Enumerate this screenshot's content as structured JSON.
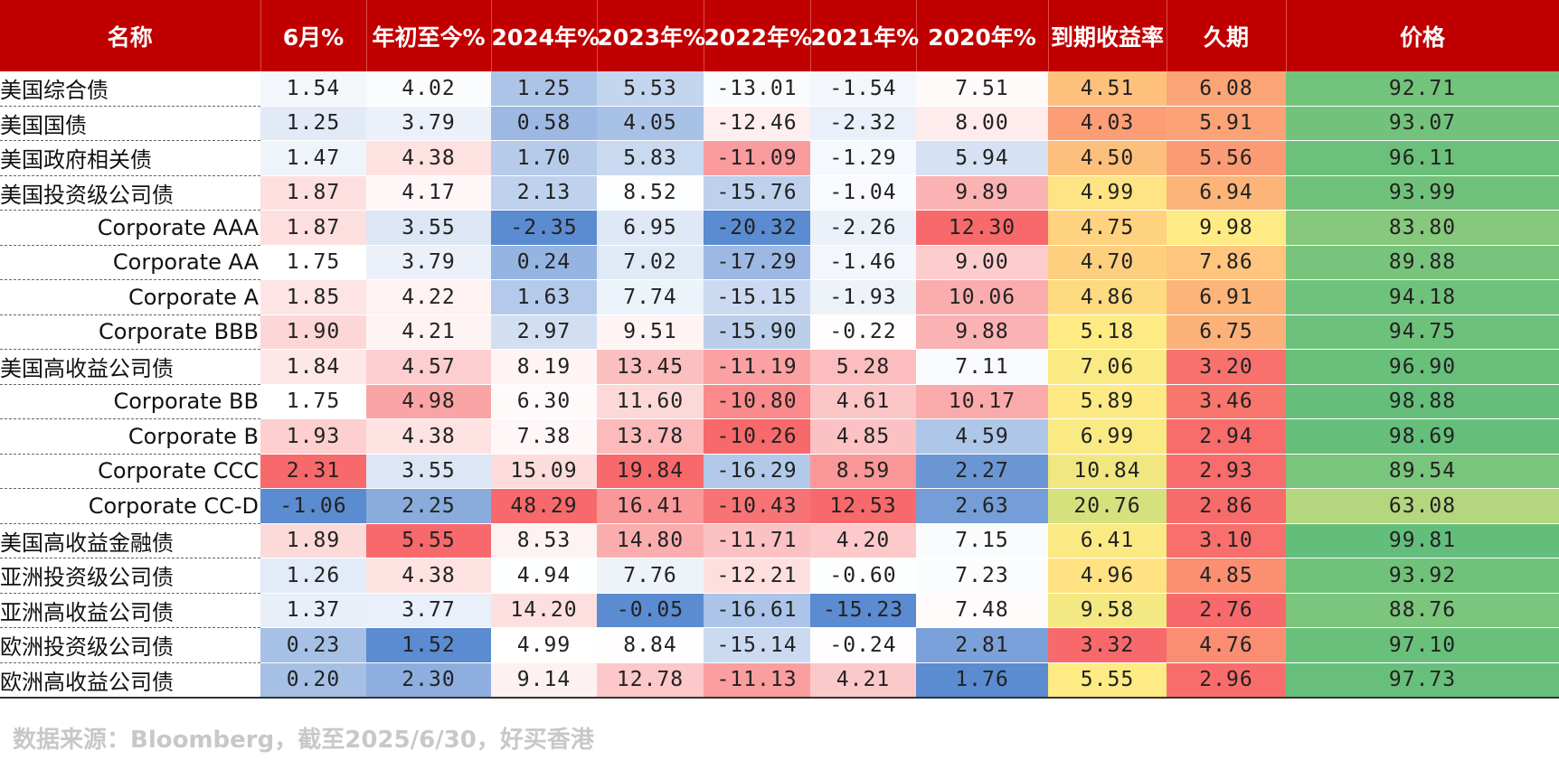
{
  "headers": [
    "名称",
    "6月%",
    "年初至今%",
    "2024年%",
    "2023年%",
    "2022年%",
    "2021年%",
    "2020年%",
    "到期收益率",
    "久期",
    "价格"
  ],
  "rows": [
    {
      "name": "美国综合债",
      "indent": false,
      "values": [
        "1.54",
        "4.02",
        "1.25",
        "5.53",
        "-13.01",
        "-1.54",
        "7.51",
        "4.51",
        "6.08",
        "92.71"
      ]
    },
    {
      "name": "美国国债",
      "indent": false,
      "values": [
        "1.25",
        "3.79",
        "0.58",
        "4.05",
        "-12.46",
        "-2.32",
        "8.00",
        "4.03",
        "5.91",
        "93.07"
      ]
    },
    {
      "name": "美国政府相关债",
      "indent": false,
      "values": [
        "1.47",
        "4.38",
        "1.70",
        "5.83",
        "-11.09",
        "-1.29",
        "5.94",
        "4.50",
        "5.56",
        "96.11"
      ]
    },
    {
      "name": "美国投资级公司债",
      "indent": false,
      "values": [
        "1.87",
        "4.17",
        "2.13",
        "8.52",
        "-15.76",
        "-1.04",
        "9.89",
        "4.99",
        "6.94",
        "93.99"
      ]
    },
    {
      "name": "Corporate AAA",
      "indent": true,
      "values": [
        "1.87",
        "3.55",
        "-2.35",
        "6.95",
        "-20.32",
        "-2.26",
        "12.30",
        "4.75",
        "9.98",
        "83.80"
      ]
    },
    {
      "name": "Corporate AA",
      "indent": true,
      "values": [
        "1.75",
        "3.79",
        "0.24",
        "7.02",
        "-17.29",
        "-1.46",
        "9.00",
        "4.70",
        "7.86",
        "89.88"
      ]
    },
    {
      "name": "Corporate A",
      "indent": true,
      "values": [
        "1.85",
        "4.22",
        "1.63",
        "7.74",
        "-15.15",
        "-1.93",
        "10.06",
        "4.86",
        "6.91",
        "94.18"
      ]
    },
    {
      "name": "Corporate BBB",
      "indent": true,
      "values": [
        "1.90",
        "4.21",
        "2.97",
        "9.51",
        "-15.90",
        "-0.22",
        "9.88",
        "5.18",
        "6.75",
        "94.75"
      ]
    },
    {
      "name": "美国高收益公司债",
      "indent": false,
      "values": [
        "1.84",
        "4.57",
        "8.19",
        "13.45",
        "-11.19",
        "5.28",
        "7.11",
        "7.06",
        "3.20",
        "96.90"
      ]
    },
    {
      "name": "Corporate BB",
      "indent": true,
      "values": [
        "1.75",
        "4.98",
        "6.30",
        "11.60",
        "-10.80",
        "4.61",
        "10.17",
        "5.89",
        "3.46",
        "98.88"
      ]
    },
    {
      "name": "Corporate B",
      "indent": true,
      "values": [
        "1.93",
        "4.38",
        "7.38",
        "13.78",
        "-10.26",
        "4.85",
        "4.59",
        "6.99",
        "2.94",
        "98.69"
      ]
    },
    {
      "name": "Corporate CCC",
      "indent": true,
      "values": [
        "2.31",
        "3.55",
        "15.09",
        "19.84",
        "-16.29",
        "8.59",
        "2.27",
        "10.84",
        "2.93",
        "89.54"
      ]
    },
    {
      "name": "Corporate CC-D",
      "indent": true,
      "values": [
        "-1.06",
        "2.25",
        "48.29",
        "16.41",
        "-10.43",
        "12.53",
        "2.63",
        "20.76",
        "2.86",
        "63.08"
      ]
    },
    {
      "name": "美国高收益金融债",
      "indent": false,
      "values": [
        "1.89",
        "5.55",
        "8.53",
        "14.80",
        "-11.71",
        "4.20",
        "7.15",
        "6.41",
        "3.10",
        "99.81"
      ]
    },
    {
      "name": "亚洲投资级公司债",
      "indent": false,
      "values": [
        "1.26",
        "4.38",
        "4.94",
        "7.76",
        "-12.21",
        "-0.60",
        "7.23",
        "4.96",
        "4.85",
        "93.92"
      ]
    },
    {
      "name": "亚洲高收益公司债",
      "indent": false,
      "values": [
        "1.37",
        "3.77",
        "14.20",
        "-0.05",
        "-16.61",
        "-15.23",
        "7.48",
        "9.58",
        "2.76",
        "88.76"
      ]
    },
    {
      "name": "欧洲投资级公司债",
      "indent": false,
      "values": [
        "0.23",
        "1.52",
        "4.99",
        "8.84",
        "-15.14",
        "-0.24",
        "2.81",
        "3.32",
        "4.76",
        "97.10"
      ]
    },
    {
      "name": "欧洲高收益公司债",
      "indent": false,
      "values": [
        "0.20",
        "2.30",
        "9.14",
        "12.78",
        "-11.13",
        "4.21",
        "1.76",
        "5.55",
        "2.96",
        "97.73"
      ]
    }
  ],
  "colors": {
    "header_bg": "#c00000",
    "header_text": "#ffffff",
    "return_negative": "#5b8bd0",
    "return_mid": "#ffffff",
    "return_positive": "#f8696b",
    "yield_low": "#f8696b",
    "yield_mid": "#ffeb84",
    "yield_high": "#d5e17d",
    "duration_low": "#f8696b",
    "duration_high": "#ffeb84",
    "price_low": "#b3d67e",
    "price_high": "#63be7b"
  },
  "source": "数据来源：Bloomberg，截至2025/6/30，好买香港"
}
